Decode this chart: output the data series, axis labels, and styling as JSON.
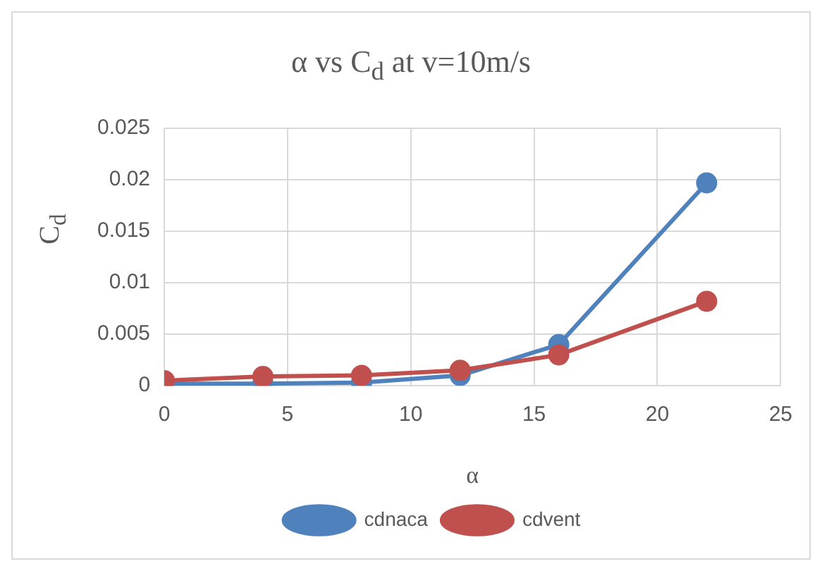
{
  "chart_data": {
    "type": "line",
    "title": "α vs C$_{d}$ at v=10m/s",
    "xlabel": "α",
    "ylabel": "C$_{d}$",
    "x": [
      0,
      4,
      8,
      12,
      16,
      22
    ],
    "series": [
      {
        "name": "cdnaca",
        "color": "#4f81bd",
        "values": [
          0.0002,
          0.0002,
          0.0003,
          0.001,
          0.004,
          0.0197
        ]
      },
      {
        "name": "cdvent",
        "color": "#c0504d",
        "values": [
          0.0005,
          0.0009,
          0.001,
          0.0015,
          0.003,
          0.0082
        ]
      }
    ],
    "xlim": [
      0,
      25
    ],
    "xticks": [
      0,
      5,
      10,
      15,
      20,
      25
    ],
    "ylim": [
      0,
      0.025
    ],
    "yticks": [
      0,
      0.005,
      0.01,
      0.015,
      0.02,
      0.025
    ],
    "grid": true,
    "legend": "bottom",
    "marker": "circle",
    "line_style": "solid"
  }
}
